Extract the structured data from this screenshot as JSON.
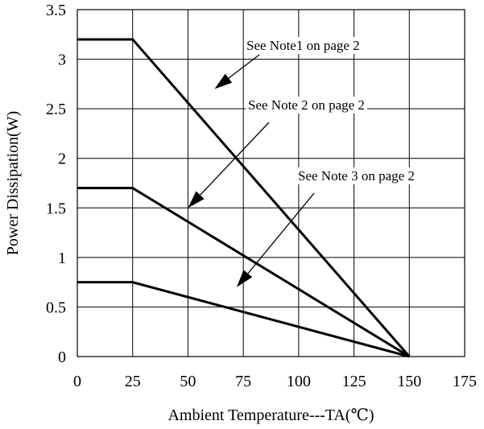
{
  "chart_data": {
    "type": "line",
    "xlabel": "Ambient Temperature---TA(℃)",
    "ylabel": "Power Dissipation(W)",
    "xlim": [
      0,
      175
    ],
    "ylim": [
      0,
      3.5
    ],
    "xticks": [
      0,
      25,
      50,
      75,
      100,
      125,
      150,
      175
    ],
    "yticks": [
      0,
      0.5,
      1,
      1.5,
      2,
      2.5,
      3,
      3.5
    ],
    "ytick_labels": [
      "0",
      "0.5",
      "1",
      "1.5",
      "2",
      "2.5",
      "3",
      "3.5"
    ],
    "grid": true,
    "series": [
      {
        "x": [
          0,
          25,
          150
        ],
        "y": [
          3.2,
          3.2,
          0
        ]
      },
      {
        "x": [
          0,
          25,
          150
        ],
        "y": [
          1.7,
          1.7,
          0
        ]
      },
      {
        "x": [
          0,
          25,
          150
        ],
        "y": [
          0.75,
          0.75,
          0
        ]
      }
    ],
    "annotations": [
      {
        "text": "See Note1 on page 2",
        "arrow_to": [
          62,
          2.7
        ]
      },
      {
        "text": "See Note 2 on page 2",
        "arrow_to": [
          50,
          1.5
        ]
      },
      {
        "text": "See Note 3 on page 2",
        "arrow_to": [
          72,
          0.7
        ]
      }
    ]
  }
}
